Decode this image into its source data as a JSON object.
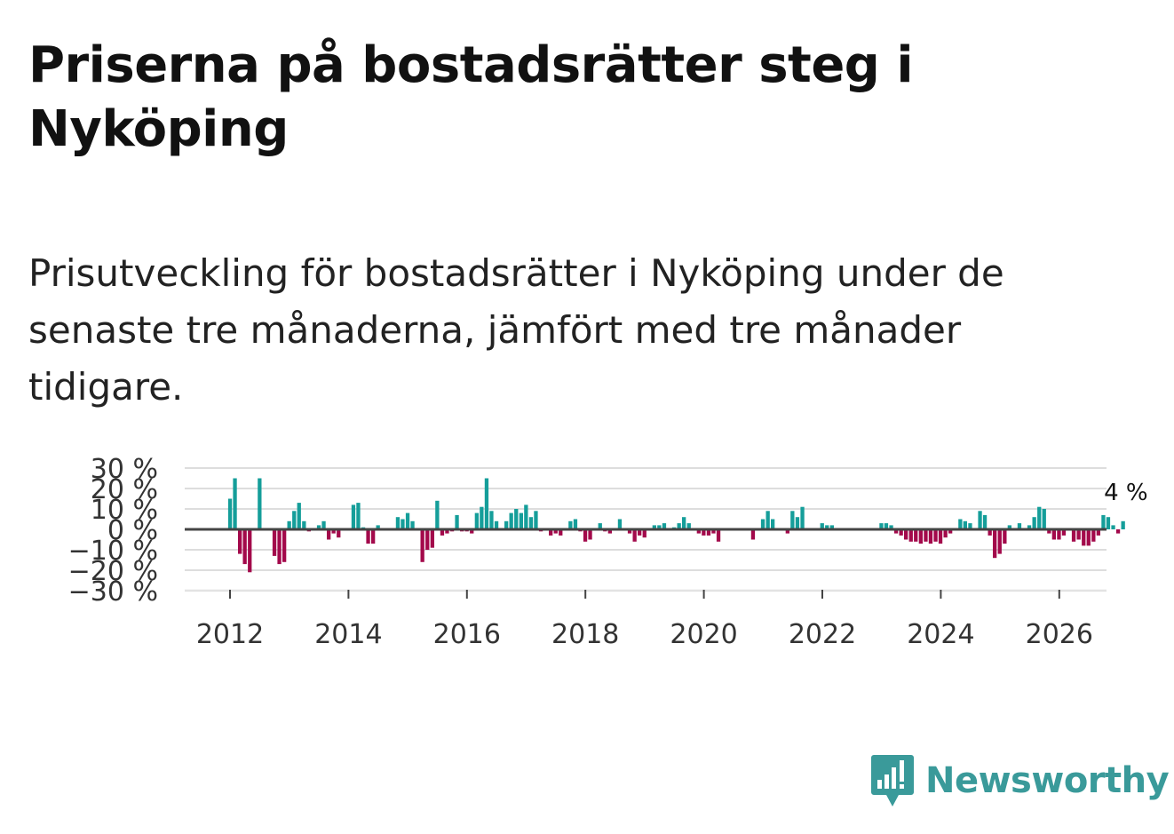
{
  "title": "Priserna på bostadsrätter steg i Nyköping",
  "subtitle": "Prisutveckling för bostadsrätter i Nyköping under de senaste tre månaderna, jämfört med tre månader tidigare.",
  "brand": {
    "name": "Newsworthy",
    "color": "#3a9a9a",
    "icon": "newsworthy-logo-icon"
  },
  "colors": {
    "positive": "#159e9a",
    "negative": "#a3094b",
    "grid": "#dddddd",
    "zero": "#444444"
  },
  "chart_data": {
    "type": "bar",
    "title": "",
    "xlabel": "",
    "ylabel": "",
    "ylim": [
      -30,
      30
    ],
    "yticks": [
      30,
      20,
      10,
      0,
      -10,
      -20,
      -30
    ],
    "ytick_labels": [
      "30 %",
      "20 %",
      "10 %",
      "0 %",
      "−10 %",
      "−20 %",
      "−30 %"
    ],
    "xticks": [
      2012,
      2014,
      2016,
      2018,
      2020,
      2022,
      2024,
      2026
    ],
    "x_start": 2012.0,
    "x_step_years": 0.0833,
    "last_value_label": "4 %",
    "values": [
      15,
      25,
      -12,
      -17,
      -21,
      0,
      25,
      0,
      0,
      -13,
      -17,
      -16,
      4,
      9,
      13,
      4,
      -1,
      0,
      2,
      4,
      -5,
      -2,
      -4,
      0,
      0,
      12,
      13,
      1,
      -7,
      -7,
      2,
      0,
      0,
      0,
      6,
      5,
      8,
      4,
      0,
      -16,
      -10,
      -9,
      14,
      -3,
      -2,
      -1,
      7,
      -1,
      -1,
      -2,
      8,
      11,
      25,
      9,
      4,
      0,
      4,
      8,
      10,
      8,
      12,
      6,
      9,
      -1,
      0,
      -3,
      -2,
      -3,
      0,
      4,
      5,
      -1,
      -6,
      -5,
      0,
      3,
      -1,
      -2,
      0,
      5,
      0,
      -2,
      -6,
      -3,
      -4,
      0,
      2,
      2,
      3,
      0,
      1,
      3,
      6,
      3,
      0,
      -2,
      -3,
      -3,
      -2,
      -6,
      0,
      0,
      0,
      0,
      0,
      0,
      -5,
      0,
      5,
      9,
      5,
      0,
      0,
      -2,
      9,
      6,
      11,
      0,
      0,
      0,
      3,
      2,
      2,
      0,
      0,
      0,
      0,
      0,
      0,
      0,
      0,
      0,
      3,
      3,
      2,
      -2,
      -3,
      -5,
      -6,
      -6,
      -7,
      -6,
      -7,
      -6,
      -7,
      -4,
      -2,
      0,
      5,
      4,
      3,
      0,
      9,
      7,
      -3,
      -14,
      -12,
      -7,
      2,
      0,
      3,
      0,
      2,
      6,
      11,
      10,
      -2,
      -5,
      -5,
      -3,
      0,
      -6,
      -5,
      -8,
      -8,
      -6,
      -3,
      7,
      6,
      2,
      -2,
      4
    ]
  }
}
